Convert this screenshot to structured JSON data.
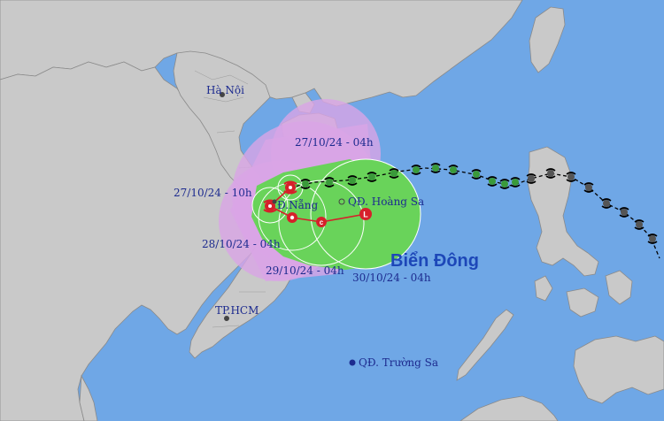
{
  "colors": {
    "sea": "#6fa7e6",
    "land": "#c9c9c9",
    "danger_zone_outer": "#d9a5e6",
    "forecast_cone": "#69d35a",
    "forecast_circle_outline": "#ffffff",
    "track_past": "#000000",
    "track_forecast": "#d6202a",
    "label_text": "#1d2b8f",
    "sea_label": "#1d47b8"
  },
  "places": {
    "hanoi": "Hà Nội",
    "danang": "Đ.Nẵng",
    "hcm": "TP.HCM",
    "hoang_sa": "QĐ. Hoàng Sa",
    "truong_sa": "QĐ. Trường Sa",
    "bien_dong": "Biển Đông"
  },
  "forecast_times": {
    "t1": "27/10/24 - 04h",
    "t2": "27/10/24 - 10h",
    "t3": "28/10/24 - 04h",
    "t4": "29/10/24 - 04h",
    "t5": "30/10/24 - 04h"
  },
  "storm_symbol": {
    "forecast_marker_letter": "L",
    "forecast_marker_letter_storm": "c",
    "past_track_icon": "typhoon-icon"
  }
}
